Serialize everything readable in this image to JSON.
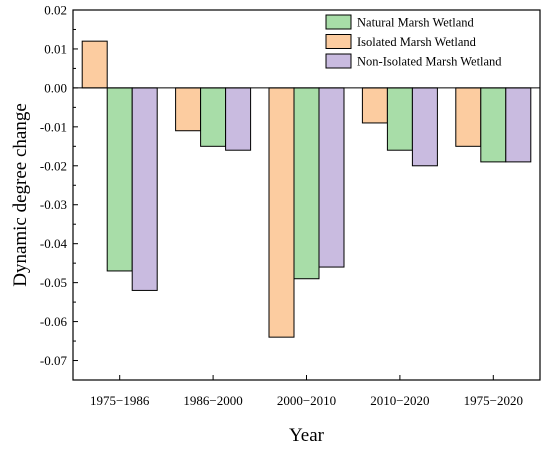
{
  "chart_data": {
    "type": "bar",
    "title": "",
    "xlabel": "Year",
    "ylabel": "Dynamic degree change",
    "categories": [
      "1975−1986",
      "1986−2000",
      "2000−2010",
      "2010−2020",
      "1975−2020"
    ],
    "series": [
      {
        "name": "Natural Marsh Wetland",
        "color": "#a8dda8",
        "values": [
          -0.047,
          -0.015,
          -0.049,
          -0.016,
          -0.019
        ]
      },
      {
        "name": "Isolated Marsh Wetland",
        "color": "#fccca0",
        "values": [
          0.012,
          -0.011,
          -0.064,
          -0.009,
          -0.015
        ]
      },
      {
        "name": "Non-Isolated Marsh Wetland",
        "color": "#c9bbe0",
        "values": [
          -0.052,
          -0.016,
          -0.046,
          -0.02,
          -0.019
        ]
      }
    ],
    "bar_order": [
      "Isolated Marsh Wetland",
      "Natural Marsh Wetland",
      "Non-Isolated Marsh Wetland"
    ],
    "ylim": [
      -0.075,
      0.02
    ],
    "yticks": [
      "0.02",
      "0.01",
      "0.00",
      "-0.01",
      "-0.02",
      "-0.03",
      "-0.04",
      "-0.05",
      "-0.06",
      "-0.07"
    ],
    "ytick_values": [
      0.02,
      0.01,
      0.0,
      -0.01,
      -0.02,
      -0.03,
      -0.04,
      -0.05,
      -0.06,
      -0.07
    ],
    "grid": false,
    "legend_position": "top-right",
    "zero_line": true
  }
}
